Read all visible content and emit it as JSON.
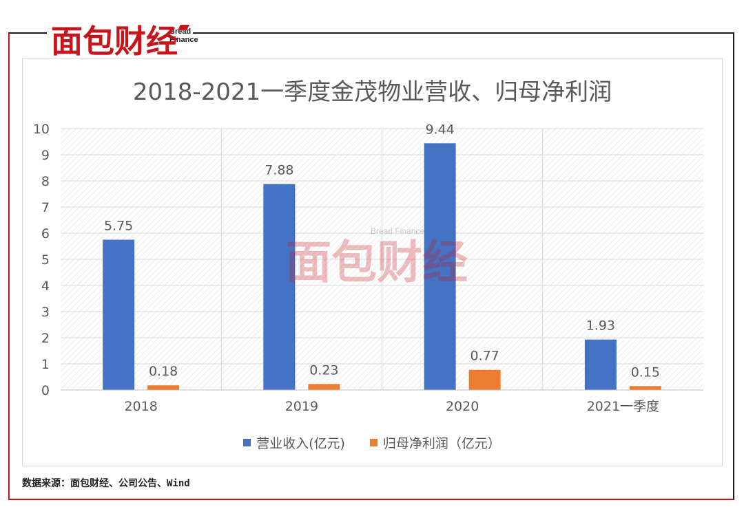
{
  "brand": {
    "name": "面包财经",
    "name_en": "Bread Finance",
    "color": "#c4161c"
  },
  "chart_data": {
    "type": "bar",
    "title": "2018-2021一季度金茂物业营收、归母净利润",
    "categories": [
      "2018",
      "2019",
      "2020",
      "2021一季度"
    ],
    "series": [
      {
        "name": "营业收入(亿元)",
        "values": [
          5.75,
          7.88,
          9.44,
          1.93
        ],
        "color": "#4472c4"
      },
      {
        "name": "归母净利润（亿元）",
        "values": [
          0.18,
          0.23,
          0.77,
          0.15
        ],
        "color": "#ed7d31"
      }
    ],
    "data_labels": [
      [
        "5.75",
        "7.88",
        "9.44",
        "1.93"
      ],
      [
        "0.18",
        "0.23",
        "0.77",
        "0.15"
      ]
    ],
    "yticks": [
      "0",
      "1",
      "2",
      "3",
      "4",
      "5",
      "6",
      "7",
      "8",
      "9",
      "10"
    ],
    "ylim": [
      0,
      10
    ],
    "grid": true,
    "legend_position": "bottom"
  },
  "footer": {
    "source": "数据来源：面包财经、公司公告、Wind"
  }
}
